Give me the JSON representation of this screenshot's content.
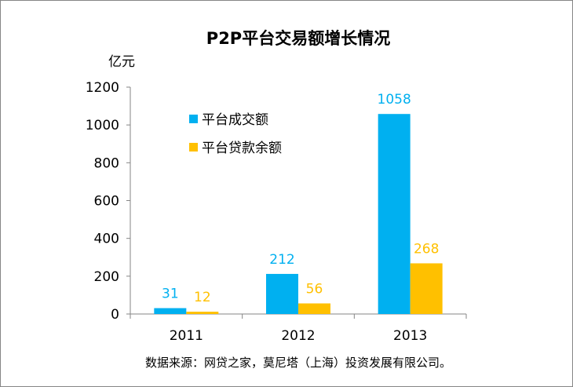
{
  "chart_data": {
    "type": "bar",
    "title": "P2P平台交易额增长情况",
    "ylabel": "亿元",
    "xlabel": "",
    "categories": [
      "2011",
      "2012",
      "2013"
    ],
    "series": [
      {
        "name": "平台成交额",
        "color": "#00B0F0",
        "values": [
          31,
          212,
          1058
        ]
      },
      {
        "name": "平台贷款余额",
        "color": "#FFC000",
        "values": [
          12,
          56,
          268
        ]
      }
    ],
    "ylim": [
      0,
      1200
    ],
    "yticks": [
      "0",
      "200",
      "400",
      "600",
      "800",
      "1000",
      "1200"
    ],
    "legend_position": "top-left",
    "grid": false,
    "source_note": "数据来源：网贷之家，莫尼塔（上海）投资发展有限公司。"
  }
}
